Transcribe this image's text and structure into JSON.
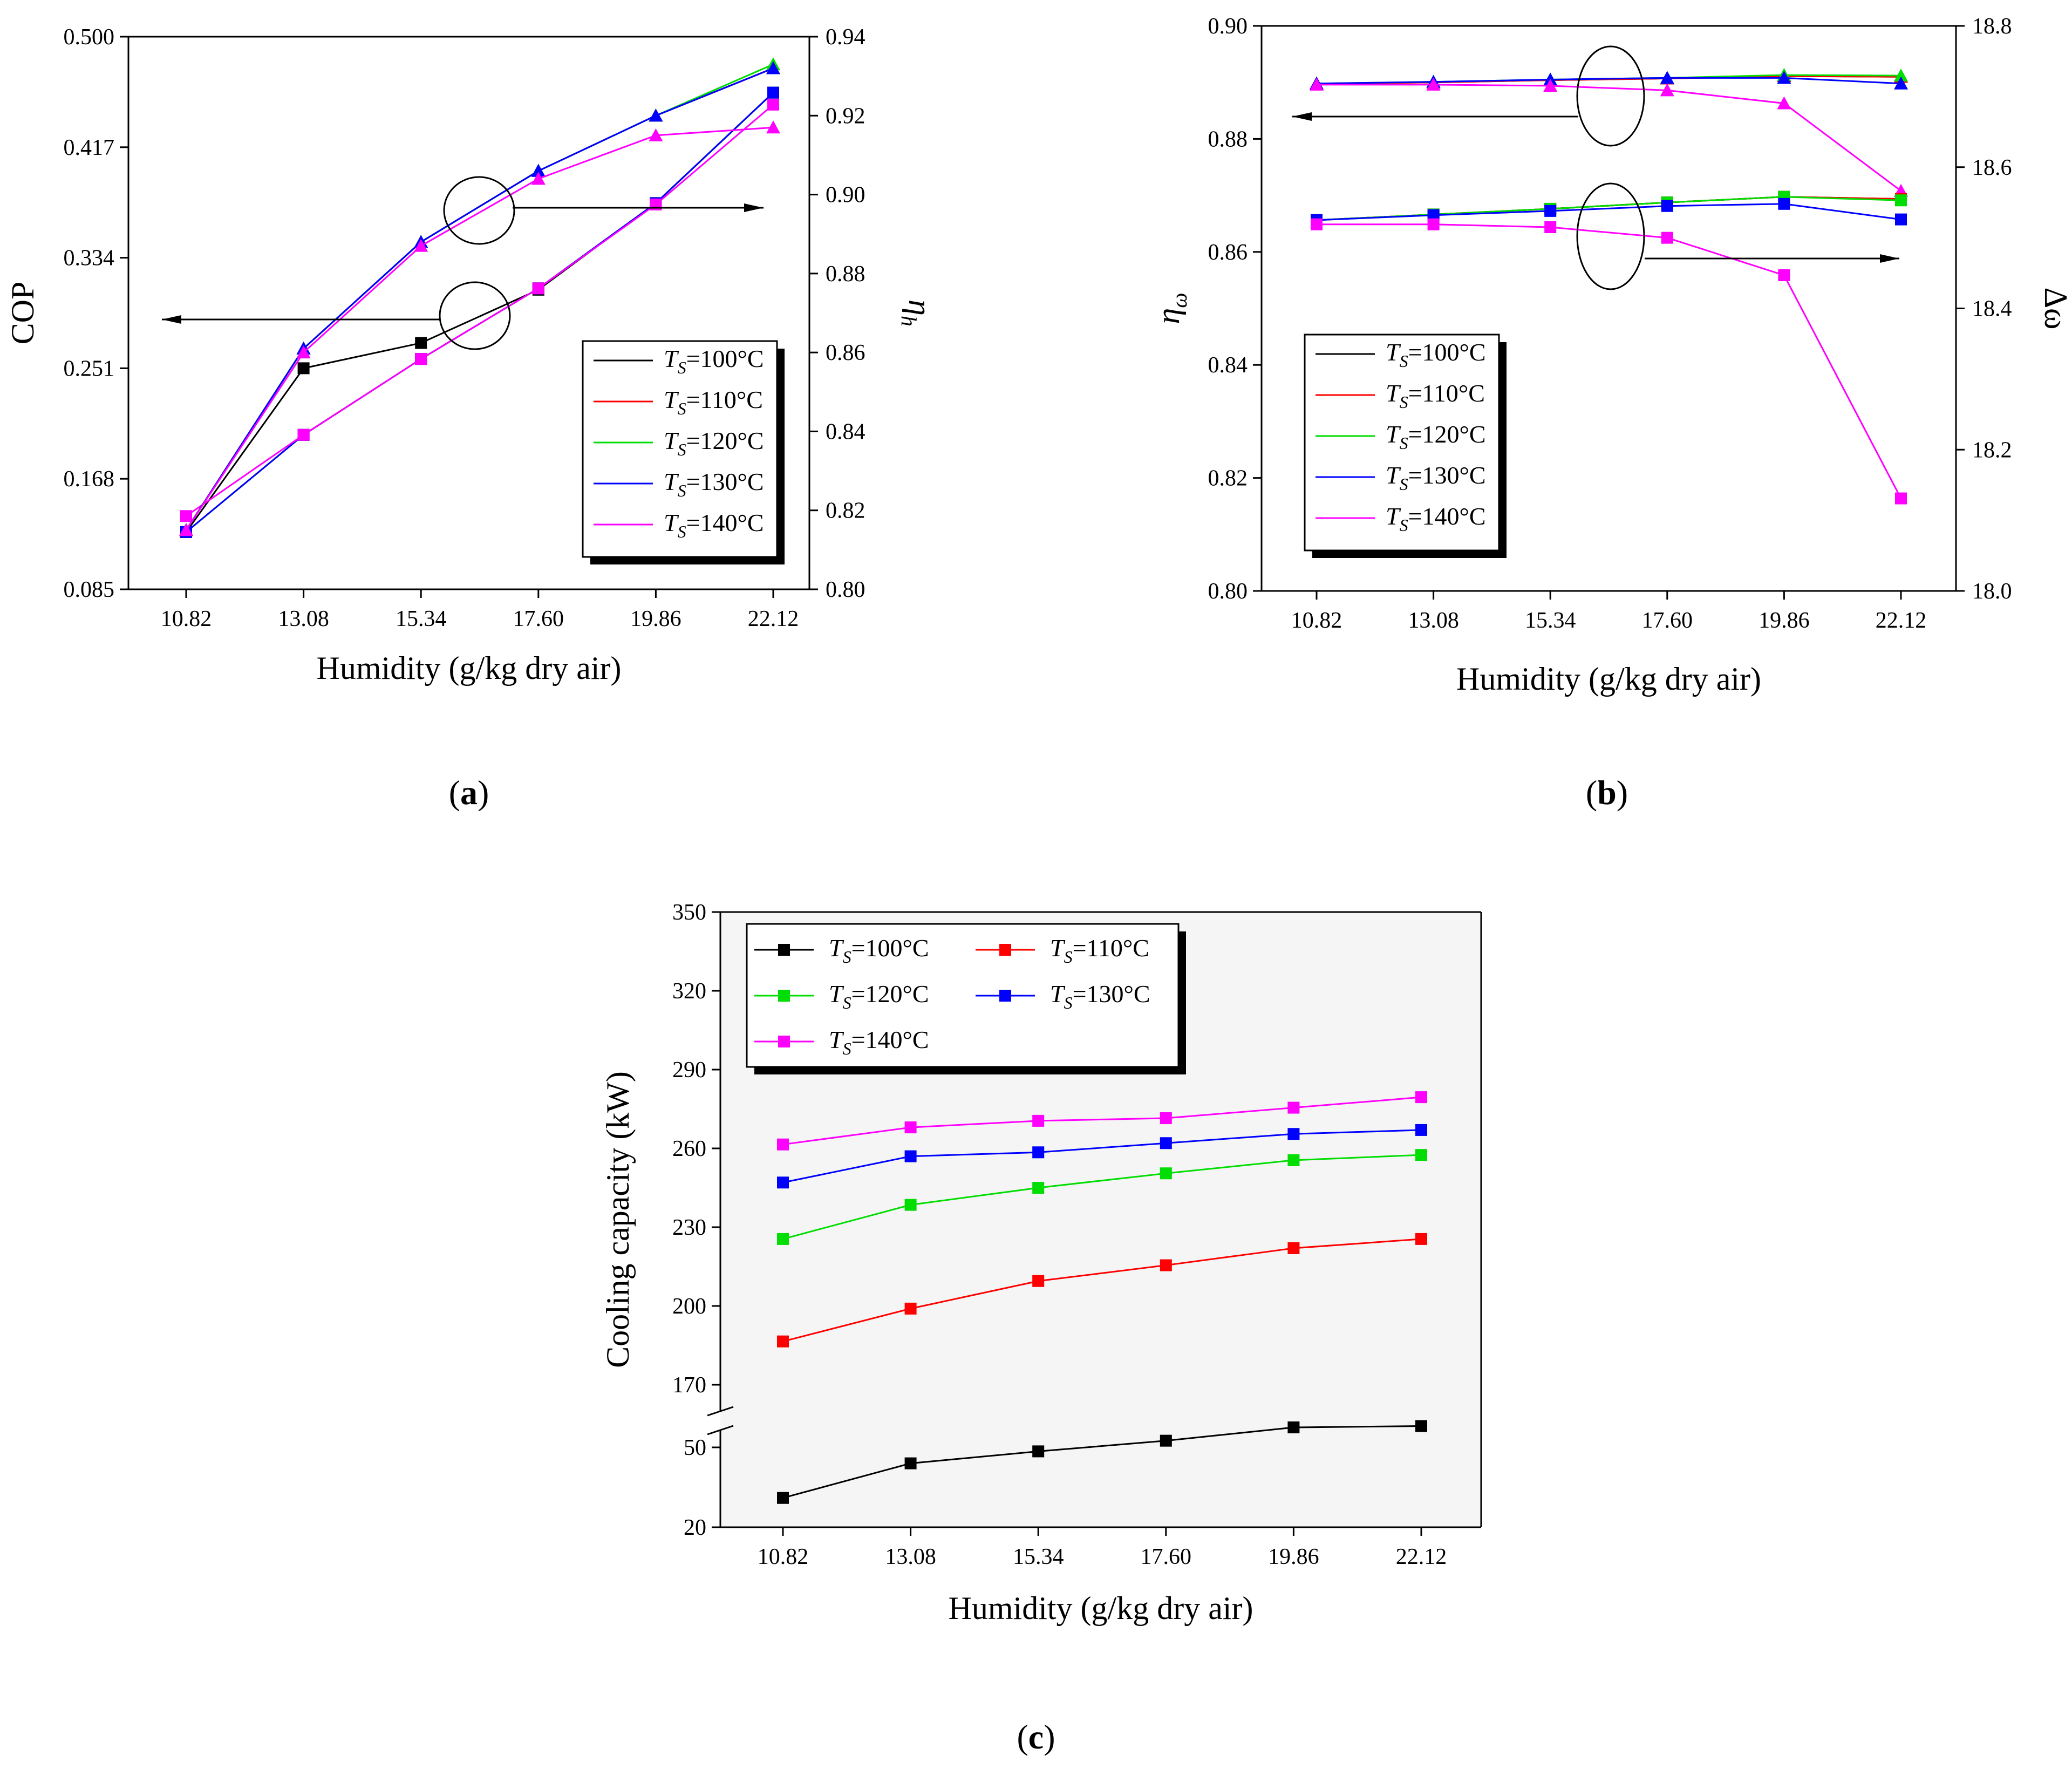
{
  "chart_data": [
    {
      "id": "a",
      "type": "line",
      "panel_label": "(a)",
      "xlabel": "Humidity (g/kg dry air)",
      "ylabel": "COP",
      "y2label": "η_h",
      "categories": [
        "10.82",
        "13.08",
        "15.34",
        "17.60",
        "19.86",
        "22.12"
      ],
      "ylim": [
        0.085,
        0.5
      ],
      "yticks": [
        "0.085",
        "0.168",
        "0.251",
        "0.334",
        "0.417",
        "0.500"
      ],
      "y2lim": [
        0.8,
        0.94
      ],
      "y2ticks": [
        "0.80",
        "0.82",
        "0.84",
        "0.86",
        "0.88",
        "0.90",
        "0.92",
        "0.94"
      ],
      "legend": [
        "T_S=100°C",
        "T_S=110°C",
        "T_S=120°C",
        "T_S=130°C",
        "T_S=140°C"
      ],
      "series": [
        {
          "name": "T_S=100°C",
          "color": "#000000",
          "axis": "left",
          "marker": "square",
          "values": [
            0.128,
            0.251,
            0.27,
            0.31,
            0.375,
            0.458
          ]
        },
        {
          "name": "T_S=110°C",
          "color": "#ff0000",
          "axis": "left",
          "marker": "square",
          "values": [
            0.128,
            0.201,
            0.258,
            0.311,
            0.375,
            0.458
          ]
        },
        {
          "name": "T_S=120°C",
          "color": "#00dd00",
          "axis": "left",
          "marker": "square",
          "values": [
            0.128,
            0.201,
            0.258,
            0.311,
            0.375,
            0.458
          ]
        },
        {
          "name": "T_S=130°C",
          "color": "#0000ff",
          "axis": "left",
          "marker": "square",
          "values": [
            0.128,
            0.201,
            0.258,
            0.311,
            0.375,
            0.458
          ]
        },
        {
          "name": "T_S=140°C",
          "color": "#ff00ff",
          "axis": "left",
          "marker": "square",
          "values": [
            0.14,
            0.201,
            0.258,
            0.311,
            0.374,
            0.449
          ]
        },
        {
          "name": "T_S=100°C",
          "color": "#000000",
          "axis": "right",
          "marker": "triangle",
          "values": [
            0.815,
            0.861,
            0.888,
            0.906,
            0.92,
            0.932
          ]
        },
        {
          "name": "T_S=110°C",
          "color": "#ff0000",
          "axis": "right",
          "marker": "triangle",
          "values": [
            0.815,
            0.861,
            0.888,
            0.906,
            0.92,
            0.932
          ]
        },
        {
          "name": "T_S=120°C",
          "color": "#00dd00",
          "axis": "right",
          "marker": "triangle",
          "values": [
            0.815,
            0.861,
            0.888,
            0.906,
            0.92,
            0.933
          ]
        },
        {
          "name": "T_S=130°C",
          "color": "#0000ff",
          "axis": "right",
          "marker": "triangle",
          "values": [
            0.815,
            0.861,
            0.888,
            0.906,
            0.92,
            0.932
          ]
        },
        {
          "name": "T_S=140°C",
          "color": "#ff00ff",
          "axis": "right",
          "marker": "triangle",
          "values": [
            0.815,
            0.86,
            0.887,
            0.904,
            0.915,
            0.917
          ]
        }
      ]
    },
    {
      "id": "b",
      "type": "line",
      "panel_label": "(b)",
      "xlabel": "Humidity (g/kg dry air)",
      "ylabel": "η_ω",
      "y2label": "Δω",
      "categories": [
        "10.82",
        "13.08",
        "15.34",
        "17.60",
        "19.86",
        "22.12"
      ],
      "ylim": [
        0.8,
        0.9
      ],
      "yticks": [
        "0.80",
        "0.82",
        "0.84",
        "0.86",
        "0.88",
        "0.90"
      ],
      "y2lim": [
        18.0,
        18.8
      ],
      "y2ticks": [
        "18.0",
        "18.2",
        "18.4",
        "18.6",
        "18.8"
      ],
      "legend": [
        "T_S=100°C",
        "T_S=110°C",
        "T_S=120°C",
        "T_S=130°C",
        "T_S=140°C"
      ],
      "series": [
        {
          "name": "T_S=100°C",
          "color": "#000000",
          "axis": "left",
          "marker": "triangle",
          "values": [
            0.8898,
            0.89,
            0.8904,
            0.8907,
            0.8911,
            0.891
          ]
        },
        {
          "name": "T_S=110°C",
          "color": "#ff0000",
          "axis": "left",
          "marker": "triangle",
          "values": [
            0.8898,
            0.89,
            0.8904,
            0.8907,
            0.8911,
            0.891
          ]
        },
        {
          "name": "T_S=120°C",
          "color": "#00dd00",
          "axis": "left",
          "marker": "triangle",
          "values": [
            0.8898,
            0.8901,
            0.8905,
            0.8908,
            0.8913,
            0.8912
          ]
        },
        {
          "name": "T_S=130°C",
          "color": "#0000ff",
          "axis": "left",
          "marker": "triangle",
          "values": [
            0.8898,
            0.8901,
            0.8905,
            0.8908,
            0.8908,
            0.8898
          ]
        },
        {
          "name": "T_S=140°C",
          "color": "#ff00ff",
          "axis": "left",
          "marker": "triangle",
          "values": [
            0.8896,
            0.8896,
            0.8894,
            0.8886,
            0.8863,
            0.8708
          ]
        },
        {
          "name": "T_S=100°C",
          "color": "#000000",
          "axis": "right",
          "marker": "square",
          "values": [
            18.525,
            18.533,
            18.541,
            18.55,
            18.558,
            18.555
          ]
        },
        {
          "name": "T_S=110°C",
          "color": "#ff0000",
          "axis": "right",
          "marker": "square",
          "values": [
            18.525,
            18.533,
            18.541,
            18.55,
            18.558,
            18.555
          ]
        },
        {
          "name": "T_S=120°C",
          "color": "#00dd00",
          "axis": "right",
          "marker": "square",
          "values": [
            18.525,
            18.533,
            18.541,
            18.55,
            18.558,
            18.553
          ]
        },
        {
          "name": "T_S=130°C",
          "color": "#0000ff",
          "axis": "right",
          "marker": "square",
          "values": [
            18.525,
            18.532,
            18.538,
            18.545,
            18.548,
            18.526
          ]
        },
        {
          "name": "T_S=140°C",
          "color": "#ff00ff",
          "axis": "right",
          "marker": "square",
          "values": [
            18.519,
            18.519,
            18.515,
            18.5,
            18.447,
            18.131
          ]
        }
      ]
    },
    {
      "id": "c",
      "type": "line",
      "panel_label": "(c)",
      "xlabel": "Humidity (g/kg dry air)",
      "ylabel": "Cooling capacity (kW)",
      "categories": [
        "10.82",
        "13.08",
        "15.34",
        "17.60",
        "19.86",
        "22.12"
      ],
      "y_axis_break": true,
      "ylim_lower": [
        20,
        60
      ],
      "yticks_lower": [
        "20",
        "50"
      ],
      "ylim_upper": [
        160,
        350
      ],
      "yticks_upper": [
        "170",
        "200",
        "230",
        "260",
        "290",
        "320",
        "350"
      ],
      "legend": [
        "T_S=100°C",
        "T_S=110°C",
        "T_S=120°C",
        "T_S=130°C",
        "T_S=140°C"
      ],
      "series": [
        {
          "name": "T_S=100°C",
          "color": "#000000",
          "marker": "square",
          "values": [
            31,
            44,
            48.5,
            52.5,
            57.5,
            58
          ]
        },
        {
          "name": "T_S=110°C",
          "color": "#ff0000",
          "marker": "square",
          "values": [
            186.5,
            199,
            209.5,
            215.5,
            222,
            225.5
          ]
        },
        {
          "name": "T_S=120°C",
          "color": "#00dd00",
          "marker": "square",
          "values": [
            225.5,
            238.5,
            245,
            250.5,
            255.5,
            257.5
          ]
        },
        {
          "name": "T_S=130°C",
          "color": "#0000ff",
          "marker": "square",
          "values": [
            247,
            257,
            258.5,
            262,
            265.5,
            267
          ]
        },
        {
          "name": "T_S=140°C",
          "color": "#ff00ff",
          "marker": "square",
          "values": [
            261.5,
            268,
            270.5,
            271.5,
            275.5,
            279.5
          ]
        }
      ]
    }
  ]
}
